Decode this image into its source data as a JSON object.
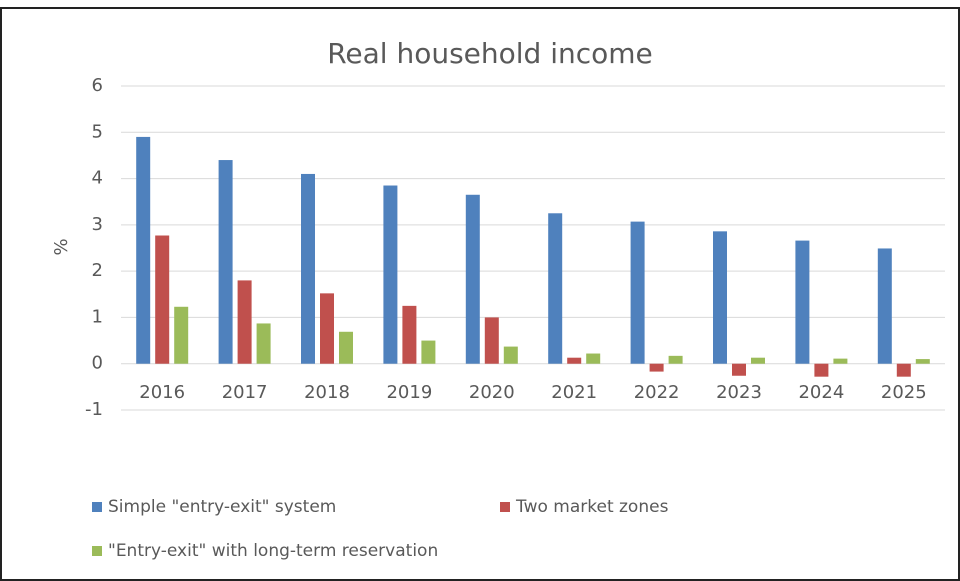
{
  "chart_data": {
    "type": "bar",
    "title": "Real household income",
    "y_label": "%",
    "categories": [
      "2016",
      "2017",
      "2018",
      "2019",
      "2020",
      "2021",
      "2022",
      "2023",
      "2024",
      "2025"
    ],
    "series": [
      {
        "name": "Simple \"entry-exit\" system",
        "color": "#4f81bd",
        "values": [
          4.9,
          4.4,
          4.1,
          3.85,
          3.65,
          3.25,
          3.07,
          2.86,
          2.66,
          2.49
        ]
      },
      {
        "name": "Two market zones",
        "color": "#c0504d",
        "values": [
          2.77,
          1.8,
          1.52,
          1.25,
          1.0,
          0.13,
          -0.17,
          -0.26,
          -0.28,
          -0.28
        ]
      },
      {
        "name": "\"Entry-exit\" with long-term reservation",
        "color": "#9bbb59",
        "values": [
          1.23,
          0.87,
          0.69,
          0.5,
          0.37,
          0.22,
          0.17,
          0.13,
          0.11,
          0.1
        ]
      }
    ],
    "ylim": [
      -1,
      6
    ],
    "yticks": [
      -1,
      0,
      1,
      2,
      3,
      4,
      5,
      6
    ],
    "grid": true,
    "legend": "bottom"
  }
}
